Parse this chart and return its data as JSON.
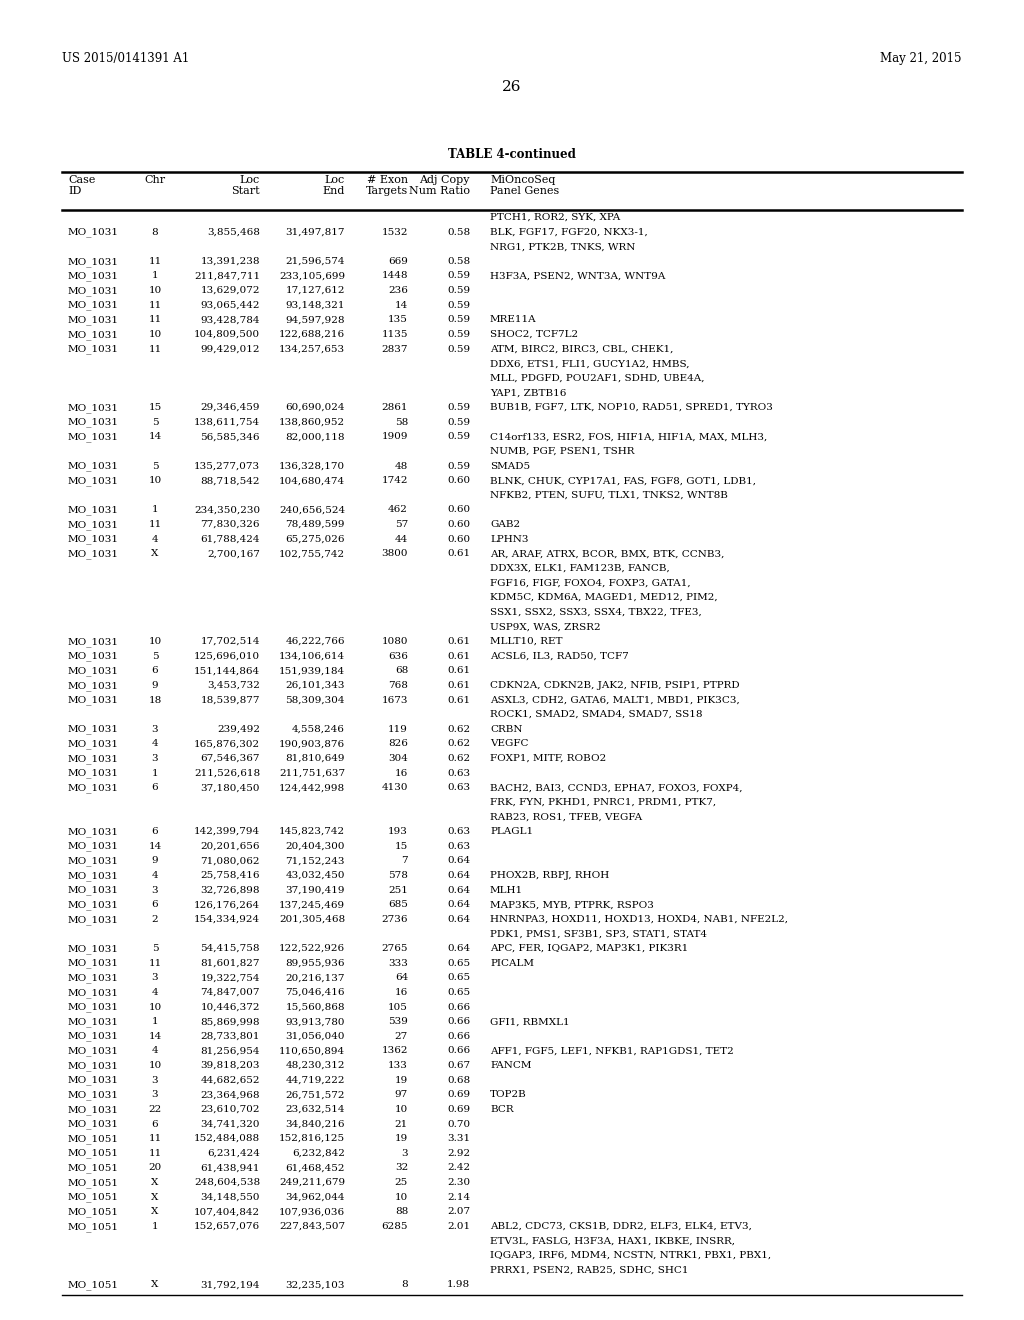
{
  "patent_left": "US 2015/0141391 A1",
  "patent_right": "May 21, 2015",
  "page_number": "26",
  "table_title": "TABLE 4-continued",
  "rows": [
    [
      "",
      "",
      "",
      "",
      "",
      "",
      "PTCH1, ROR2, SYK, XPA"
    ],
    [
      "MO_1031",
      "8",
      "3,855,468",
      "31,497,817",
      "1532",
      "0.58",
      "BLK, FGF17, FGF20, NKX3-1,"
    ],
    [
      "",
      "",
      "",
      "",
      "",
      "",
      "NRG1, PTK2B, TNKS, WRN"
    ],
    [
      "MO_1031",
      "11",
      "13,391,238",
      "21,596,574",
      "669",
      "0.58",
      ""
    ],
    [
      "MO_1031",
      "1",
      "211,847,711",
      "233,105,699",
      "1448",
      "0.59",
      "H3F3A, PSEN2, WNT3A, WNT9A"
    ],
    [
      "MO_1031",
      "10",
      "13,629,072",
      "17,127,612",
      "236",
      "0.59",
      ""
    ],
    [
      "MO_1031",
      "11",
      "93,065,442",
      "93,148,321",
      "14",
      "0.59",
      ""
    ],
    [
      "MO_1031",
      "11",
      "93,428,784",
      "94,597,928",
      "135",
      "0.59",
      "MRE11A"
    ],
    [
      "MO_1031",
      "10",
      "104,809,500",
      "122,688,216",
      "1135",
      "0.59",
      "SHOC2, TCF7L2"
    ],
    [
      "MO_1031",
      "11",
      "99,429,012",
      "134,257,653",
      "2837",
      "0.59",
      "ATM, BIRC2, BIRC3, CBL, CHEK1,"
    ],
    [
      "",
      "",
      "",
      "",
      "",
      "",
      "DDX6, ETS1, FLI1, GUCY1A2, HMBS,"
    ],
    [
      "",
      "",
      "",
      "",
      "",
      "",
      "MLL, PDGFD, POU2AF1, SDHD, UBE4A,"
    ],
    [
      "",
      "",
      "",
      "",
      "",
      "",
      "YAP1, ZBTB16"
    ],
    [
      "MO_1031",
      "15",
      "29,346,459",
      "60,690,024",
      "2861",
      "0.59",
      "BUB1B, FGF7, LTK, NOP10, RAD51, SPRED1, TYRO3"
    ],
    [
      "MO_1031",
      "5",
      "138,611,754",
      "138,860,952",
      "58",
      "0.59",
      ""
    ],
    [
      "MO_1031",
      "14",
      "56,585,346",
      "82,000,118",
      "1909",
      "0.59",
      "C14orf133, ESR2, FOS, HIF1A, HIF1A, MAX, MLH3,"
    ],
    [
      "",
      "",
      "",
      "",
      "",
      "",
      "NUMB, PGF, PSEN1, TSHR"
    ],
    [
      "MO_1031",
      "5",
      "135,277,073",
      "136,328,170",
      "48",
      "0.59",
      "SMAD5"
    ],
    [
      "MO_1031",
      "10",
      "88,718,542",
      "104,680,474",
      "1742",
      "0.60",
      "BLNK, CHUK, CYP17A1, FAS, FGF8, GOT1, LDB1,"
    ],
    [
      "",
      "",
      "",
      "",
      "",
      "",
      "NFKB2, PTEN, SUFU, TLX1, TNKS2, WNT8B"
    ],
    [
      "MO_1031",
      "1",
      "234,350,230",
      "240,656,524",
      "462",
      "0.60",
      ""
    ],
    [
      "MO_1031",
      "11",
      "77,830,326",
      "78,489,599",
      "57",
      "0.60",
      "GAB2"
    ],
    [
      "MO_1031",
      "4",
      "61,788,424",
      "65,275,026",
      "44",
      "0.60",
      "LPHN3"
    ],
    [
      "MO_1031",
      "X",
      "2,700,167",
      "102,755,742",
      "3800",
      "0.61",
      "AR, ARAF, ATRX, BCOR, BMX, BTK, CCNB3,"
    ],
    [
      "",
      "",
      "",
      "",
      "",
      "",
      "DDX3X, ELK1, FAM123B, FANCB,"
    ],
    [
      "",
      "",
      "",
      "",
      "",
      "",
      "FGF16, FIGF, FOXO4, FOXP3, GATA1,"
    ],
    [
      "",
      "",
      "",
      "",
      "",
      "",
      "KDM5C, KDM6A, MAGED1, MED12, PIM2,"
    ],
    [
      "",
      "",
      "",
      "",
      "",
      "",
      "SSX1, SSX2, SSX3, SSX4, TBX22, TFE3,"
    ],
    [
      "",
      "",
      "",
      "",
      "",
      "",
      "USP9X, WAS, ZRSR2"
    ],
    [
      "MO_1031",
      "10",
      "17,702,514",
      "46,222,766",
      "1080",
      "0.61",
      "MLLT10, RET"
    ],
    [
      "MO_1031",
      "5",
      "125,696,010",
      "134,106,614",
      "636",
      "0.61",
      "ACSL6, IL3, RAD50, TCF7"
    ],
    [
      "MO_1031",
      "6",
      "151,144,864",
      "151,939,184",
      "68",
      "0.61",
      ""
    ],
    [
      "MO_1031",
      "9",
      "3,453,732",
      "26,101,343",
      "768",
      "0.61",
      "CDKN2A, CDKN2B, JAK2, NFIB, PSIP1, PTPRD"
    ],
    [
      "MO_1031",
      "18",
      "18,539,877",
      "58,309,304",
      "1673",
      "0.61",
      "ASXL3, CDH2, GATA6, MALT1, MBD1, PIK3C3,"
    ],
    [
      "",
      "",
      "",
      "",
      "",
      "",
      "ROCK1, SMAD2, SMAD4, SMAD7, SS18"
    ],
    [
      "MO_1031",
      "3",
      "239,492",
      "4,558,246",
      "119",
      "0.62",
      "CRBN"
    ],
    [
      "MO_1031",
      "4",
      "165,876,302",
      "190,903,876",
      "826",
      "0.62",
      "VEGFC"
    ],
    [
      "MO_1031",
      "3",
      "67,546,367",
      "81,810,649",
      "304",
      "0.62",
      "FOXP1, MITF, ROBO2"
    ],
    [
      "MO_1031",
      "1",
      "211,526,618",
      "211,751,637",
      "16",
      "0.63",
      ""
    ],
    [
      "MO_1031",
      "6",
      "37,180,450",
      "124,442,998",
      "4130",
      "0.63",
      "BACH2, BAI3, CCND3, EPHA7, FOXO3, FOXP4,"
    ],
    [
      "",
      "",
      "",
      "",
      "",
      "",
      "FRK, FYN, PKHD1, PNRC1, PRDM1, PTK7,"
    ],
    [
      "",
      "",
      "",
      "",
      "",
      "",
      "RAB23, ROS1, TFEB, VEGFA"
    ],
    [
      "MO_1031",
      "6",
      "142,399,794",
      "145,823,742",
      "193",
      "0.63",
      "PLAGL1"
    ],
    [
      "MO_1031",
      "14",
      "20,201,656",
      "20,404,300",
      "15",
      "0.63",
      ""
    ],
    [
      "MO_1031",
      "9",
      "71,080,062",
      "71,152,243",
      "7",
      "0.64",
      ""
    ],
    [
      "MO_1031",
      "4",
      "25,758,416",
      "43,032,450",
      "578",
      "0.64",
      "PHOX2B, RBPJ, RHOH"
    ],
    [
      "MO_1031",
      "3",
      "32,726,898",
      "37,190,419",
      "251",
      "0.64",
      "MLH1"
    ],
    [
      "MO_1031",
      "6",
      "126,176,264",
      "137,245,469",
      "685",
      "0.64",
      "MAP3K5, MYB, PTPRK, RSPO3"
    ],
    [
      "MO_1031",
      "2",
      "154,334,924",
      "201,305,468",
      "2736",
      "0.64",
      "HNRNPA3, HOXD11, HOXD13, HOXD4, NAB1, NFE2L2,"
    ],
    [
      "",
      "",
      "",
      "",
      "",
      "",
      "PDK1, PMS1, SF3B1, SP3, STAT1, STAT4"
    ],
    [
      "MO_1031",
      "5",
      "54,415,758",
      "122,522,926",
      "2765",
      "0.64",
      "APC, FER, IQGAP2, MAP3K1, PIK3R1"
    ],
    [
      "MO_1031",
      "11",
      "81,601,827",
      "89,955,936",
      "333",
      "0.65",
      "PICALM"
    ],
    [
      "MO_1031",
      "3",
      "19,322,754",
      "20,216,137",
      "64",
      "0.65",
      ""
    ],
    [
      "MO_1031",
      "4",
      "74,847,007",
      "75,046,416",
      "16",
      "0.65",
      ""
    ],
    [
      "MO_1031",
      "10",
      "10,446,372",
      "15,560,868",
      "105",
      "0.66",
      ""
    ],
    [
      "MO_1031",
      "1",
      "85,869,998",
      "93,913,780",
      "539",
      "0.66",
      "GFI1, RBMXL1"
    ],
    [
      "MO_1031",
      "14",
      "28,733,801",
      "31,056,040",
      "27",
      "0.66",
      ""
    ],
    [
      "MO_1031",
      "4",
      "81,256,954",
      "110,650,894",
      "1362",
      "0.66",
      "AFF1, FGF5, LEF1, NFKB1, RAP1GDS1, TET2"
    ],
    [
      "MO_1031",
      "10",
      "39,818,203",
      "48,230,312",
      "133",
      "0.67",
      "FANCM"
    ],
    [
      "MO_1031",
      "3",
      "44,682,652",
      "44,719,222",
      "19",
      "0.68",
      ""
    ],
    [
      "MO_1031",
      "3",
      "23,364,968",
      "26,751,572",
      "97",
      "0.69",
      "TOP2B"
    ],
    [
      "MO_1031",
      "22",
      "23,610,702",
      "23,632,514",
      "10",
      "0.69",
      "BCR"
    ],
    [
      "MO_1031",
      "6",
      "34,741,320",
      "34,840,216",
      "21",
      "0.70",
      ""
    ],
    [
      "MO_1051",
      "11",
      "152,484,088",
      "152,816,125",
      "19",
      "3.31",
      ""
    ],
    [
      "MO_1051",
      "11",
      "6,231,424",
      "6,232,842",
      "3",
      "2.92",
      ""
    ],
    [
      "MO_1051",
      "20",
      "61,438,941",
      "61,468,452",
      "32",
      "2.42",
      ""
    ],
    [
      "MO_1051",
      "X",
      "248,604,538",
      "249,211,679",
      "25",
      "2.30",
      ""
    ],
    [
      "MO_1051",
      "X",
      "34,148,550",
      "34,962,044",
      "10",
      "2.14",
      ""
    ],
    [
      "MO_1051",
      "X",
      "107,404,842",
      "107,936,036",
      "88",
      "2.07",
      ""
    ],
    [
      "MO_1051",
      "1",
      "152,657,076",
      "227,843,507",
      "6285",
      "2.01",
      "ABL2, CDC73, CKS1B, DDR2, ELF3, ELK4, ETV3,"
    ],
    [
      "",
      "",
      "",
      "",
      "",
      "",
      "ETV3L, FASLG, H3F3A, HAX1, IKBKE, INSRR,"
    ],
    [
      "",
      "",
      "",
      "",
      "",
      "",
      "IQGAP3, IRF6, MDM4, NCSTN, NTRK1, PBX1, PBX1,"
    ],
    [
      "",
      "",
      "",
      "",
      "",
      "",
      "PRRX1, PSEN2, RAB25, SDHC, SHC1"
    ],
    [
      "MO_1051",
      "X",
      "31,792,194",
      "32,235,103",
      "8",
      "1.98",
      ""
    ]
  ],
  "bg_color": "#ffffff",
  "text_color": "#000000"
}
